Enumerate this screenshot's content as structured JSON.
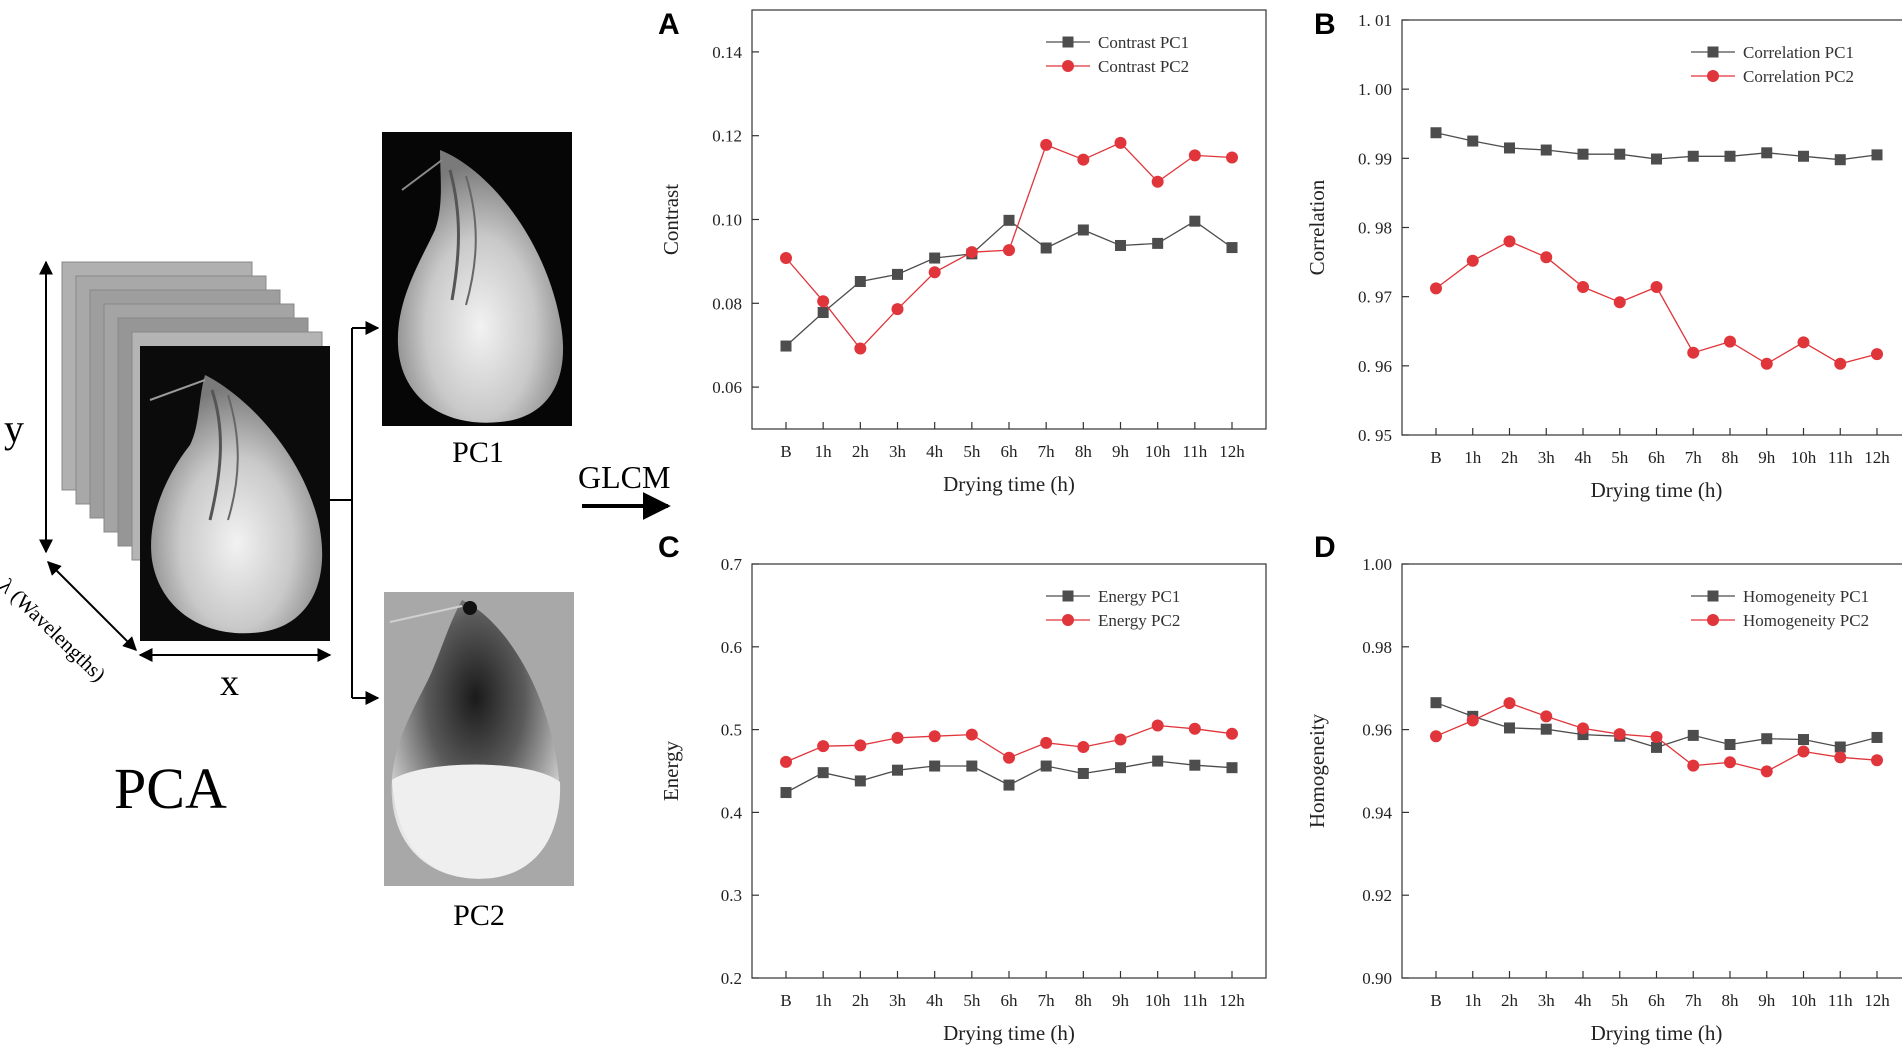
{
  "left_panel": {
    "y_label": "y",
    "x_label": "x",
    "lambda_label": "λ (Wavelengths)",
    "method_label": "PCA",
    "pc1_label": "PC1",
    "pc2_label": "PC2",
    "arrow_label": "GLCM"
  },
  "colors": {
    "pc1": "#4d4d4d",
    "pc2": "#e0353b",
    "axis": "#333333"
  },
  "chart_data": [
    {
      "panel": "A",
      "type": "line",
      "title": "",
      "xlabel": "Drying time (h)",
      "ylabel": "Contrast",
      "categories": [
        "B",
        "1h",
        "2h",
        "3h",
        "4h",
        "5h",
        "6h",
        "7h",
        "8h",
        "9h",
        "10h",
        "11h",
        "12h"
      ],
      "ylim": [
        0.05,
        0.15
      ],
      "yticks": [
        0.06,
        0.08,
        0.1,
        0.12,
        0.14
      ],
      "ytick_labels": [
        "0.06",
        "0.08",
        "0.10",
        "0.12",
        "0.14"
      ],
      "legend_position": "top-right",
      "series": [
        {
          "name": "Contrast PC1",
          "marker": "square",
          "color": "#4d4d4d",
          "values": [
            0.0698,
            0.0778,
            0.0852,
            0.0869,
            0.0908,
            0.0918,
            0.0998,
            0.0932,
            0.0975,
            0.0938,
            0.0943,
            0.0996,
            0.0933
          ]
        },
        {
          "name": "Contrast PC2",
          "marker": "circle",
          "color": "#e0353b",
          "values": [
            0.0908,
            0.0805,
            0.0692,
            0.0786,
            0.0874,
            0.0922,
            0.0927,
            0.1178,
            0.1143,
            0.1183,
            0.109,
            0.1153,
            0.1148
          ]
        }
      ]
    },
    {
      "panel": "B",
      "type": "line",
      "title": "",
      "xlabel": "Drying time (h)",
      "ylabel": "Correlation",
      "categories": [
        "B",
        "1h",
        "2h",
        "3h",
        "4h",
        "5h",
        "6h",
        "7h",
        "8h",
        "9h",
        "10h",
        "11h",
        "12h"
      ],
      "ylim": [
        0.95,
        1.01
      ],
      "yticks": [
        0.95,
        0.96,
        0.97,
        0.98,
        0.99,
        1.0,
        1.01
      ],
      "ytick_labels": [
        "0. 95",
        "0. 96",
        "0. 97",
        "0. 98",
        "0. 99",
        "1. 00",
        "1. 01"
      ],
      "legend_position": "top-right",
      "series": [
        {
          "name": "Correlation PC1",
          "marker": "square",
          "color": "#4d4d4d",
          "values": [
            0.9937,
            0.9925,
            0.9915,
            0.9912,
            0.9906,
            0.9906,
            0.9899,
            0.9903,
            0.9903,
            0.9908,
            0.9903,
            0.9898,
            0.9905
          ]
        },
        {
          "name": "Correlation PC2",
          "marker": "circle",
          "color": "#e0353b",
          "values": [
            0.9712,
            0.9752,
            0.978,
            0.9757,
            0.9714,
            0.9692,
            0.9714,
            0.9619,
            0.9635,
            0.9603,
            0.9634,
            0.9603,
            0.9617
          ]
        }
      ]
    },
    {
      "panel": "C",
      "type": "line",
      "title": "",
      "xlabel": "Drying time (h)",
      "ylabel": "Energy",
      "categories": [
        "B",
        "1h",
        "2h",
        "3h",
        "4h",
        "5h",
        "6h",
        "7h",
        "8h",
        "9h",
        "10h",
        "11h",
        "12h"
      ],
      "ylim": [
        0.2,
        0.7
      ],
      "yticks": [
        0.2,
        0.3,
        0.4,
        0.5,
        0.6,
        0.7
      ],
      "ytick_labels": [
        "0.2",
        "0.3",
        "0.4",
        "0.5",
        "0.6",
        "0.7"
      ],
      "legend_position": "top-right",
      "series": [
        {
          "name": "Energy PC1",
          "marker": "square",
          "color": "#4d4d4d",
          "values": [
            0.424,
            0.448,
            0.438,
            0.451,
            0.456,
            0.456,
            0.433,
            0.456,
            0.447,
            0.454,
            0.462,
            0.457,
            0.454
          ]
        },
        {
          "name": "Energy PC2",
          "marker": "circle",
          "color": "#e0353b",
          "values": [
            0.461,
            0.48,
            0.481,
            0.49,
            0.492,
            0.494,
            0.466,
            0.484,
            0.479,
            0.488,
            0.505,
            0.501,
            0.495
          ]
        }
      ]
    },
    {
      "panel": "D",
      "type": "line",
      "title": "",
      "xlabel": "Drying time (h)",
      "ylabel": "Homogeneity",
      "categories": [
        "B",
        "1h",
        "2h",
        "3h",
        "4h",
        "5h",
        "6h",
        "7h",
        "8h",
        "9h",
        "10h",
        "11h",
        "12h"
      ],
      "ylim": [
        0.9,
        1.0
      ],
      "yticks": [
        0.9,
        0.92,
        0.94,
        0.96,
        0.98,
        1.0
      ],
      "ytick_labels": [
        "0.90",
        "0.92",
        "0.94",
        "0.96",
        "0.98",
        "1.00"
      ],
      "legend_position": "top-right",
      "series": [
        {
          "name": "Homogeneity PC1",
          "marker": "square",
          "color": "#4d4d4d",
          "values": [
            0.9665,
            0.9632,
            0.9604,
            0.9601,
            0.9588,
            0.9584,
            0.9557,
            0.9586,
            0.9564,
            0.9578,
            0.9576,
            0.9558,
            0.9581
          ]
        },
        {
          "name": "Homogeneity PC2",
          "marker": "circle",
          "color": "#e0353b",
          "values": [
            0.9584,
            0.9622,
            0.9664,
            0.9632,
            0.9603,
            0.9589,
            0.9582,
            0.9513,
            0.9521,
            0.9499,
            0.9547,
            0.9533,
            0.9526
          ]
        }
      ]
    }
  ]
}
